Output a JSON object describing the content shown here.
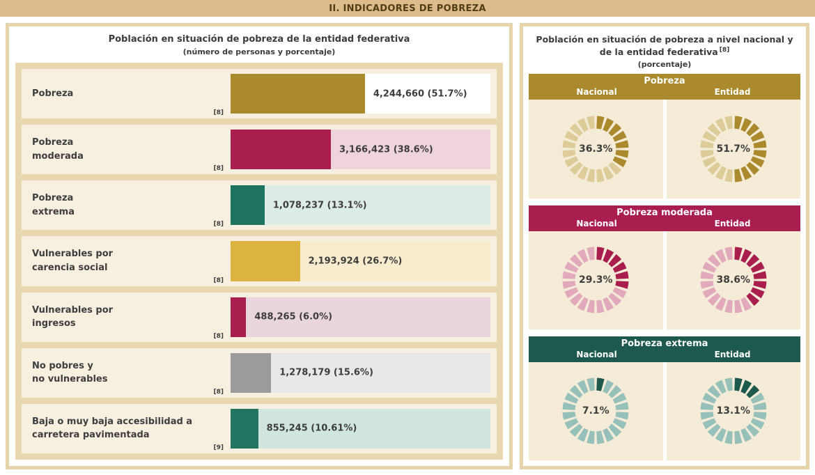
{
  "header": {
    "title": "II. INDICADORES DE POBREZA"
  },
  "left_panel": {
    "title": "Población en situación de pobreza de la entidad federativa",
    "subtitle": "(número de personas y porcentaje)",
    "rows": [
      {
        "label": "Pobreza",
        "footnote": "[8]",
        "value": "4,244,660 (51.7%)",
        "pct": 51.7,
        "bar_color": "#ab8a2d",
        "track_color": "#ffffff"
      },
      {
        "label": "Pobreza\nmoderada",
        "footnote": "[8]",
        "value": "3,166,423 (38.6%)",
        "pct": 38.6,
        "bar_color": "#a91e4f",
        "track_color": "#efd3dd"
      },
      {
        "label": "Pobreza\nextrema",
        "footnote": "[8]",
        "value": "1,078,237 (13.1%)",
        "pct": 13.1,
        "bar_color": "#1e735e",
        "track_color": "#ddece5"
      },
      {
        "label": "Vulnerables por\ncarencia social",
        "footnote": "[8]",
        "value": "2,193,924 (26.7%)",
        "pct": 26.7,
        "bar_color": "#dcb340",
        "track_color": "#f7eccd"
      },
      {
        "label": "Vulnerables por\ningresos",
        "footnote": "[8]",
        "value": "488,265 (6.0%)",
        "pct": 6.0,
        "bar_color": "#a91e4f",
        "track_color": "#e9d5de"
      },
      {
        "label": "No pobres y\nno vulnerables",
        "footnote": "[8]",
        "value": "1,278,179 (15.6%)",
        "pct": 15.6,
        "bar_color": "#9b9b9b",
        "track_color": "#e9e7e7"
      },
      {
        "label": "Baja o muy baja accesibilidad a\ncarretera pavimentada",
        "footnote": "[9]",
        "value": "855,245 (10.61%)",
        "pct": 10.61,
        "bar_color": "#217560",
        "track_color": "#cfe5de"
      }
    ]
  },
  "right_panel": {
    "title": "Población en situación de pobreza a nivel nacional y de la entidad federativa",
    "title_footnote": "[8]",
    "subtitle": "(porcentaje)",
    "column_labels": {
      "nacional": "Nacional",
      "entidad": "Entidad"
    },
    "groups": [
      {
        "title": "Pobreza",
        "band_color": "#ab8a2d",
        "fill_color": "#ab8a2d",
        "empty_color": "#ddcb98",
        "donuts": [
          {
            "column": "Nacional",
            "value": "36.3%",
            "pct": 36.3
          },
          {
            "column": "Entidad",
            "value": "51.7%",
            "pct": 51.7
          }
        ]
      },
      {
        "title": "Pobreza moderada",
        "band_color": "#a91e4f",
        "fill_color": "#a91e4f",
        "empty_color": "#e2a9bd",
        "donuts": [
          {
            "column": "Nacional",
            "value": "29.3%",
            "pct": 29.3
          },
          {
            "column": "Entidad",
            "value": "38.6%",
            "pct": 38.6
          }
        ]
      },
      {
        "title": "Pobreza extrema",
        "band_color": "#1d5a4d",
        "fill_color": "#1d5a4d",
        "empty_color": "#96c1ba",
        "donuts": [
          {
            "column": "Nacional",
            "value": "7.1%",
            "pct": 7.1
          },
          {
            "column": "Entidad",
            "value": "13.1%",
            "pct": 13.1
          }
        ]
      }
    ]
  },
  "chart_data": [
    {
      "type": "bar",
      "orientation": "horizontal",
      "title": "Población en situación de pobreza de la entidad federativa",
      "subtitle": "(número de personas y porcentaje)",
      "categories": [
        "Pobreza",
        "Pobreza moderada",
        "Pobreza extrema",
        "Vulnerables por carencia social",
        "Vulnerables por ingresos",
        "No pobres y no vulnerables",
        "Baja o muy baja accesibilidad a carretera pavimentada"
      ],
      "values": [
        4244660,
        3166423,
        1078237,
        2193924,
        488265,
        1278179,
        855245
      ],
      "percentages": [
        51.7,
        38.6,
        13.1,
        26.7,
        6.0,
        15.6,
        10.61
      ],
      "footnotes": [
        "[8]",
        "[8]",
        "[8]",
        "[8]",
        "[8]",
        "[8]",
        "[9]"
      ],
      "xlim": [
        0,
        100
      ],
      "grid": false
    },
    {
      "type": "pie",
      "variant": "segmented-donut",
      "title": "Población en situación de pobreza a nivel nacional y de la entidad federativa [8]",
      "subtitle": "(porcentaje)",
      "categories": [
        "Nacional",
        "Entidad"
      ],
      "series": [
        {
          "name": "Pobreza",
          "values": [
            36.3,
            51.7
          ]
        },
        {
          "name": "Pobreza moderada",
          "values": [
            29.3,
            38.6
          ]
        },
        {
          "name": "Pobreza extrema",
          "values": [
            7.1,
            13.1
          ]
        }
      ]
    }
  ]
}
